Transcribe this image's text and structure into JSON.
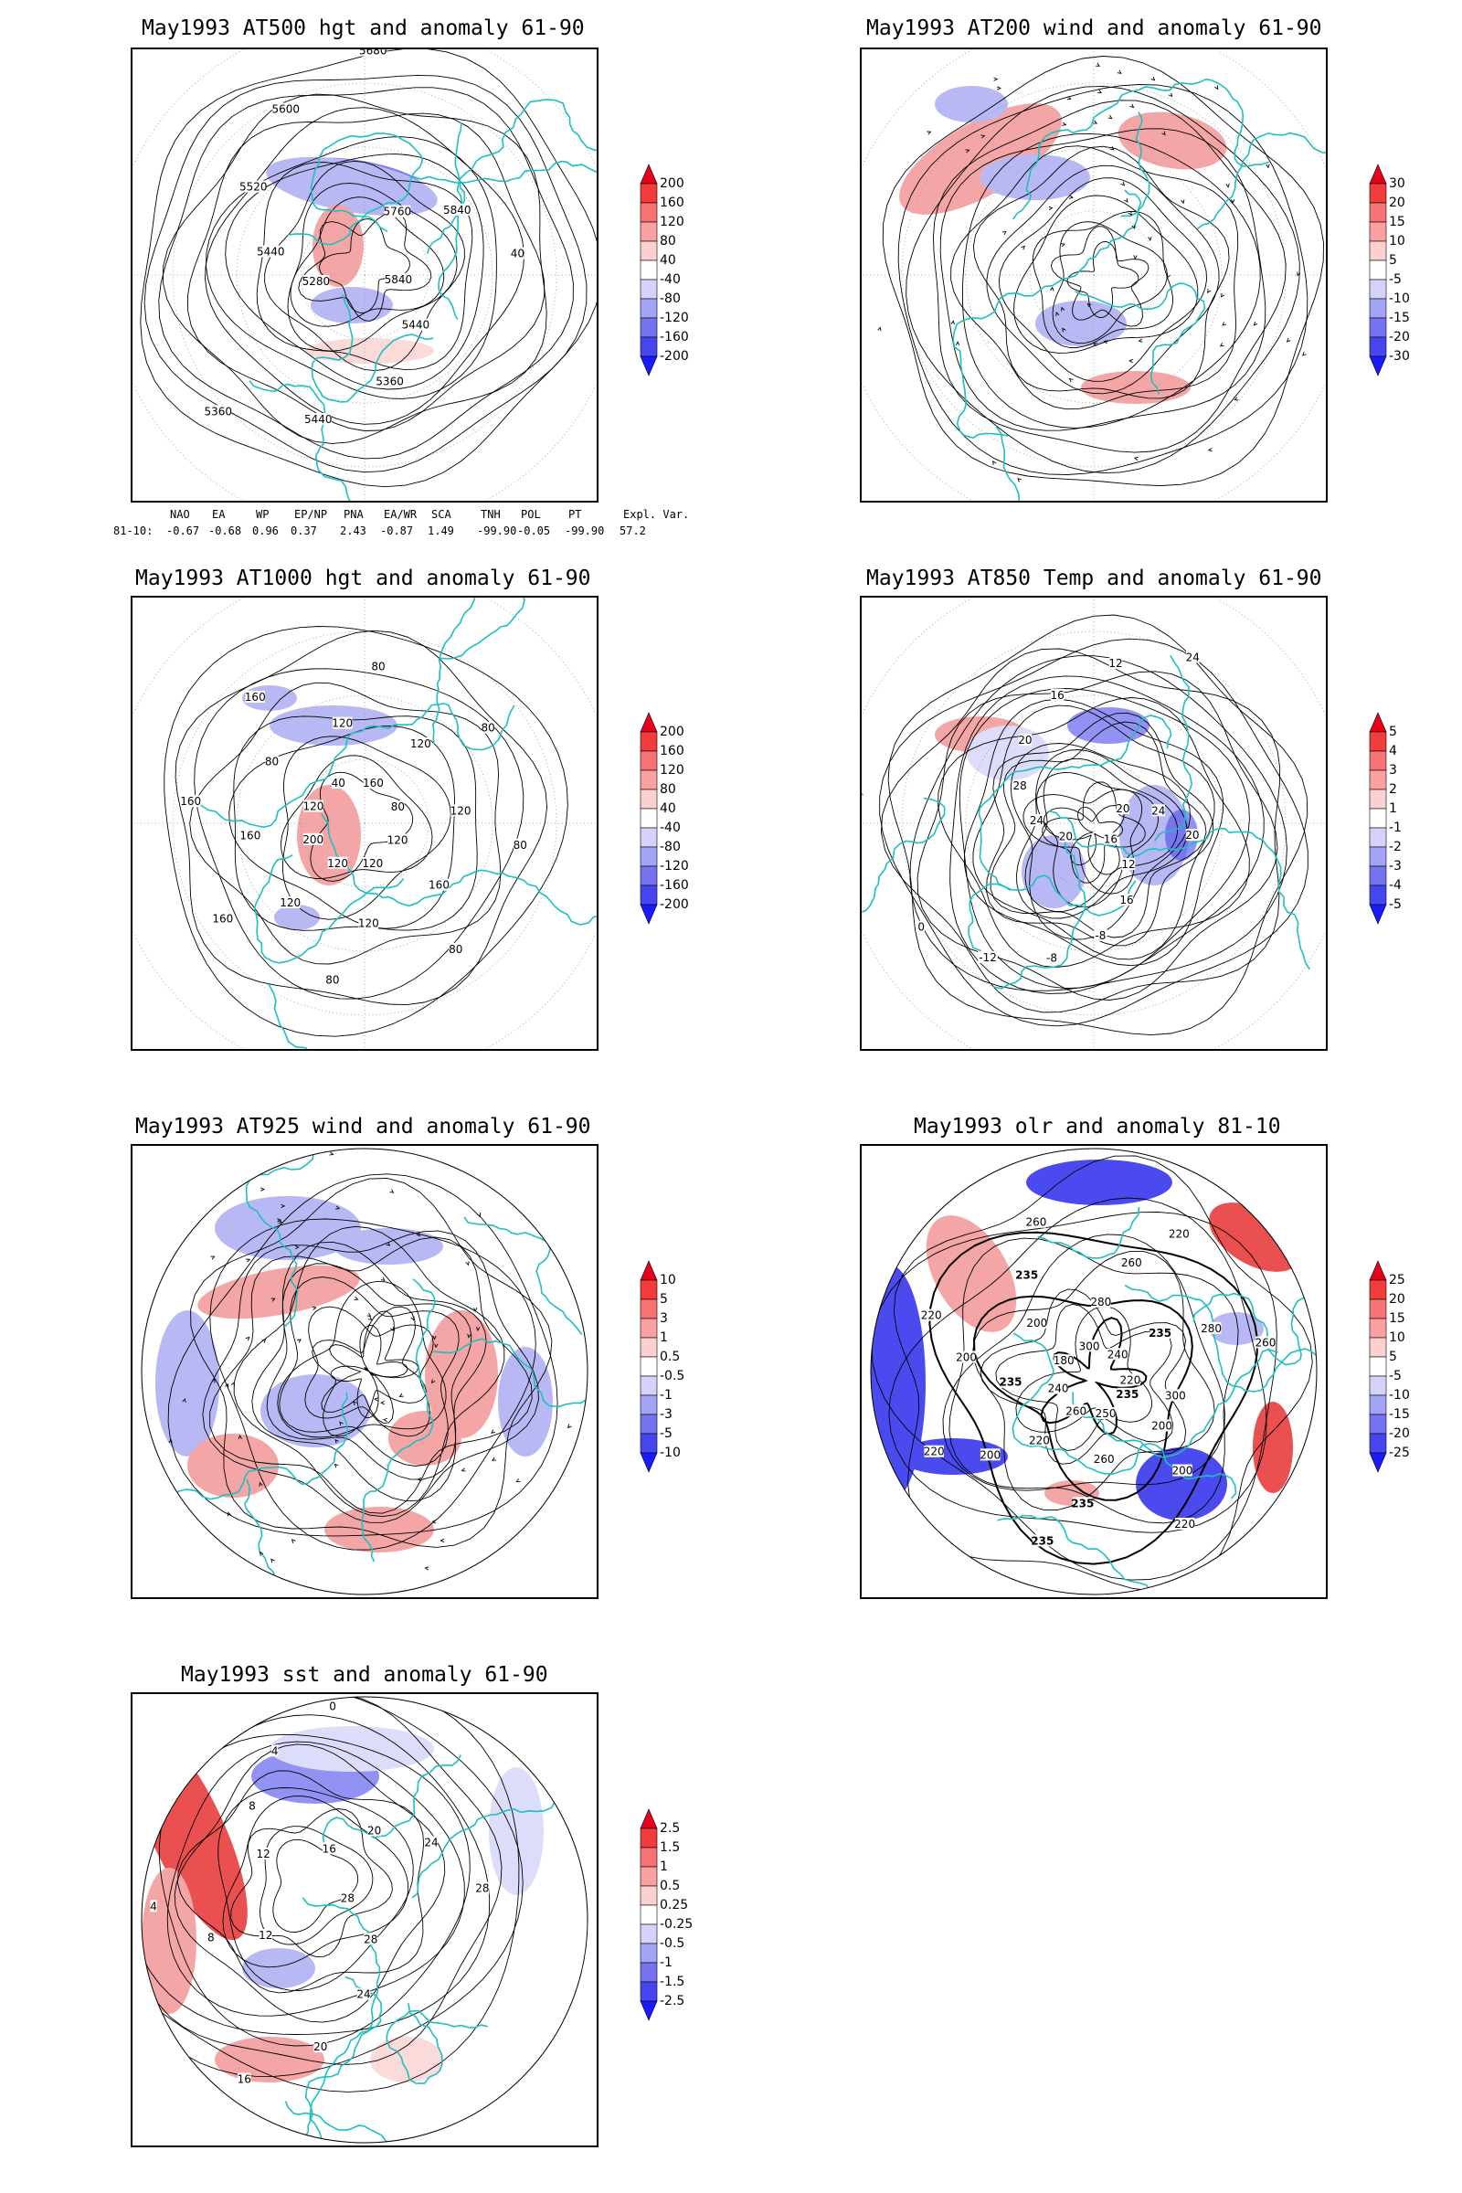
{
  "panels": [
    {
      "id": "p500",
      "title": "May1993 AT500 hgt and anomaly 61-90",
      "colorbar": [
        "200",
        "160",
        "120",
        "80",
        "40",
        "-40",
        "-80",
        "-120",
        "-160",
        "-200"
      ],
      "contour_labels": [
        "5840",
        "5440",
        "5360",
        "5440",
        "5360",
        "5280",
        "5440",
        "5520",
        "5600",
        "5680",
        "5760",
        "5840",
        "40"
      ]
    },
    {
      "id": "p200",
      "title": "May1993 AT200 wind and anomaly 61-90",
      "colorbar": [
        "30",
        "20",
        "15",
        "10",
        "5",
        "-5",
        "-10",
        "-15",
        "-20",
        "-30"
      ],
      "contour_labels": []
    },
    {
      "id": "p1000",
      "title": "May1993 AT1000 hgt and anomaly 61-90",
      "colorbar": [
        "200",
        "160",
        "120",
        "80",
        "40",
        "-40",
        "-80",
        "-120",
        "-160",
        "-200"
      ],
      "contour_labels": [
        "120",
        "160",
        "80",
        "120",
        "120",
        "80",
        "120",
        "120",
        "160",
        "200",
        "160",
        "160",
        "120",
        "80",
        "160",
        "40",
        "120",
        "80",
        "160",
        "120",
        "80",
        "80",
        "120",
        "80"
      ]
    },
    {
      "id": "p850",
      "title": "May1993 AT850 Temp and anomaly 61-90",
      "colorbar": [
        "5",
        "4",
        "3",
        "2",
        "1",
        "-1",
        "-2",
        "-3",
        "-4",
        "-5"
      ],
      "contour_labels": [
        "16",
        "12",
        "16",
        "-8",
        "-8",
        "-12",
        "0",
        "20",
        "24",
        "28",
        "20",
        "16",
        "12",
        "24",
        "20",
        "24",
        "20"
      ]
    },
    {
      "id": "p925",
      "title": "May1993 AT925 wind and anomaly 61-90",
      "colorbar": [
        "10",
        "5",
        "3",
        "1",
        "0.5",
        "-0.5",
        "-1",
        "-3",
        "-5",
        "-10"
      ],
      "contour_labels": []
    },
    {
      "id": "polr",
      "title": "May1993 olr and anomaly 81-10",
      "colorbar": [
        "25",
        "20",
        "15",
        "10",
        "5",
        "-5",
        "-10",
        "-15",
        "-20",
        "-25"
      ],
      "contour_labels": [
        "235",
        "200",
        "200",
        "220",
        "250",
        "260",
        "235",
        "235",
        "260",
        "220",
        "200",
        "220",
        "240",
        "235",
        "200",
        "220",
        "180",
        "200",
        "235",
        "260",
        "300",
        "280",
        "260",
        "220",
        "240",
        "235",
        "280",
        "260",
        "220",
        "300"
      ]
    },
    {
      "id": "psst",
      "title": "May1993 sst and anomaly 61-90",
      "colorbar": [
        "2.5",
        "1.5",
        "1",
        "0.5",
        "0.25",
        "-0.25",
        "-0.5",
        "-1",
        "-1.5",
        "-2.5"
      ],
      "contour_labels": [
        "28",
        "28",
        "24",
        "20",
        "16",
        "12",
        "8",
        "4",
        "28",
        "12",
        "8",
        "4",
        "0",
        "16",
        "20",
        "24",
        "28"
      ]
    }
  ],
  "teleconnections": {
    "headers": [
      "NAO",
      "EA",
      "WP",
      "EP/NP",
      "PNA",
      "EA/WR",
      "SCA",
      "TNH",
      "POL",
      "PT",
      "Expl. Var."
    ],
    "row_label": "81-10:",
    "values": [
      "-0.67",
      "-0.68",
      "0.96",
      "0.37",
      "2.43",
      "-0.87",
      "1.49",
      "-99.90",
      "-0.05",
      "-99.90",
      "57.2"
    ]
  },
  "colors": {
    "red_max": "#e6001a",
    "red_light": "#fbd1d1",
    "blue_light": "#d6d6fb",
    "blue_max": "#1a1aff",
    "coast": "#1fbfbf",
    "contour": "#000000"
  }
}
